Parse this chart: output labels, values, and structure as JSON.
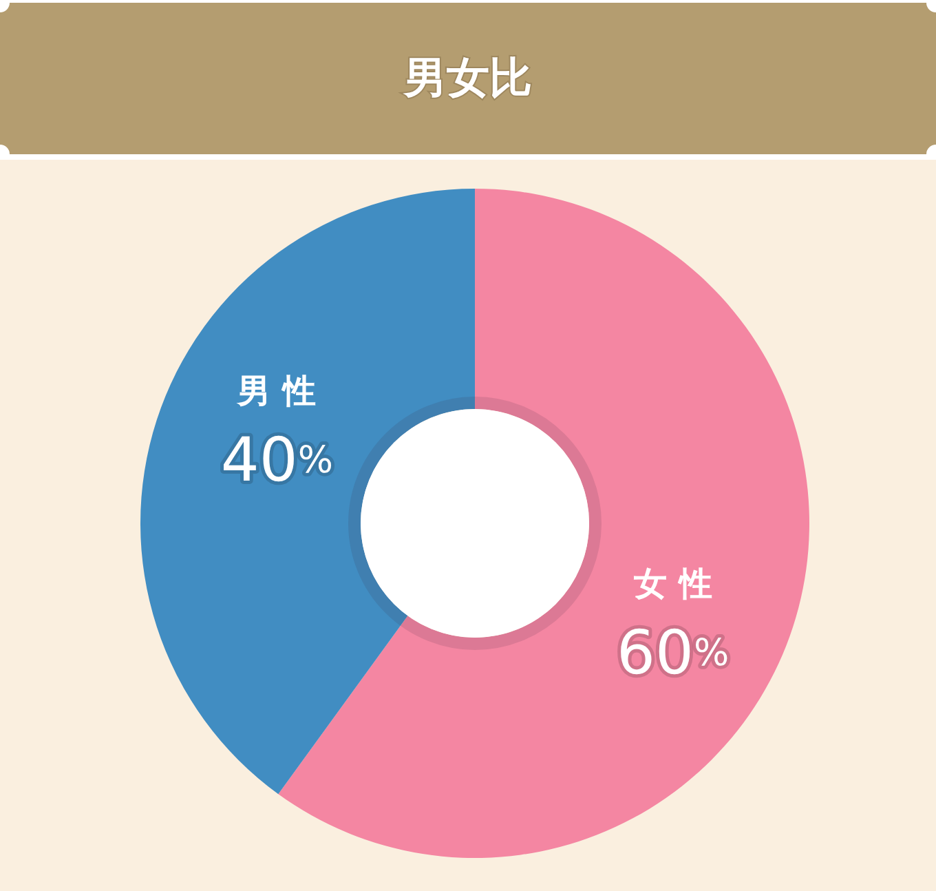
{
  "chart_data": {
    "type": "donut",
    "title": "男女比",
    "categories": [
      "女性",
      "男性"
    ],
    "values": [
      60,
      40
    ],
    "colors": [
      "#f486a2",
      "#418dc2"
    ],
    "value_labels": [
      "60%",
      "40%"
    ]
  }
}
